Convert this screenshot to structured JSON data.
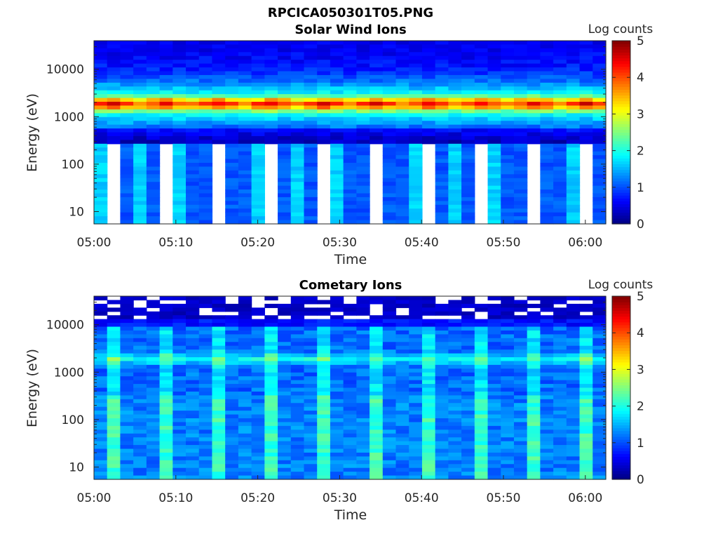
{
  "figure_title": "RPCICA050301T05.PNG",
  "chart_data": [
    {
      "type": "heatmap",
      "title": "Solar Wind Ions",
      "xlabel": "Time",
      "ylabel": "Energy (eV)",
      "x_ticks": [
        "05:00",
        "05:10",
        "05:20",
        "05:30",
        "05:40",
        "05:50",
        "06:00"
      ],
      "y_ticks": [
        10,
        100,
        1000,
        10000
      ],
      "y_scale": "log",
      "ylim": [
        5.5,
        40000
      ],
      "x_range_minutes": [
        0,
        62.5
      ],
      "colorbar": {
        "label": "Log counts",
        "range": [
          0,
          5
        ],
        "ticks": [
          0,
          1,
          2,
          3,
          4,
          5
        ],
        "colormap": "jet"
      },
      "bins_per_cycle": 12,
      "cycle_minutes": 6.4,
      "blank_below_eV": 280,
      "peak_energy_eV": 1850,
      "pattern_description_note": ""
    },
    {
      "type": "heatmap",
      "title": "Cometary Ions",
      "xlabel": "Time",
      "ylabel": "Energy (eV)",
      "x_ticks": [
        "05:00",
        "05:10",
        "05:20",
        "05:30",
        "05:40",
        "05:50",
        "06:00"
      ],
      "y_ticks": [
        10,
        100,
        1000,
        10000
      ],
      "y_scale": "log",
      "ylim": [
        5.5,
        40000
      ],
      "x_range_minutes": [
        0,
        62.5
      ],
      "colorbar": {
        "label": "Log counts",
        "range": [
          0,
          5
        ],
        "ticks": [
          0,
          1,
          2,
          3,
          4,
          5
        ],
        "colormap": "jet"
      },
      "peak_energy_eV": 1900
    }
  ]
}
